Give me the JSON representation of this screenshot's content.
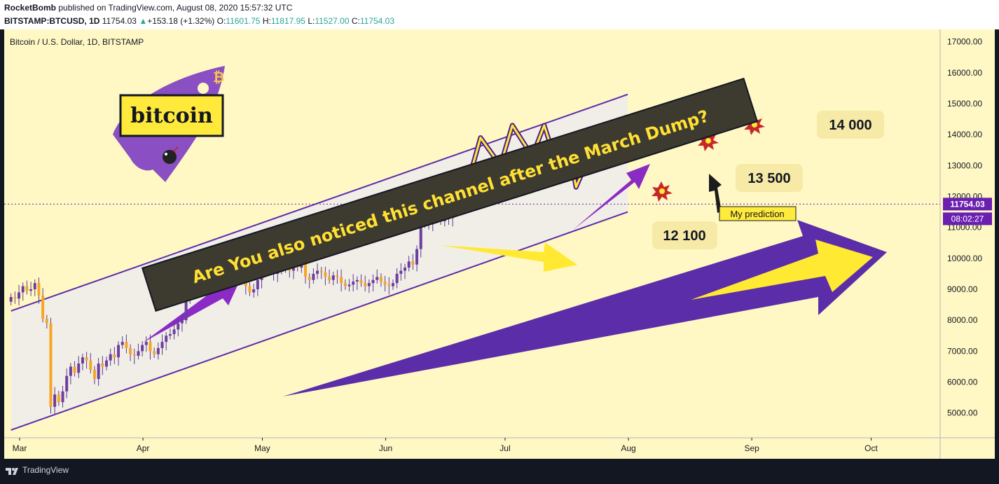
{
  "header": {
    "author": "RocketBomb",
    "published": "published on TradingView.com, August 08, 2020 15:57:32 UTC",
    "symbol": "BITSTAMP:BTCUSD, 1D",
    "last": "11754.03",
    "change": "+153.18 (+1.32%)",
    "o_label": "O:",
    "o": "11601.75",
    "h_label": "H:",
    "h": "11817.95",
    "l_label": "L:",
    "l": "11527.00",
    "c_label": "C:",
    "c": "11754.03"
  },
  "footer": {
    "brand": "TradingView"
  },
  "colors": {
    "bg": "#fff8c4",
    "purple": "#6a1fb0",
    "yellow": "#ffeb3b",
    "up": "#6b3fa0",
    "down": "#f5a623"
  },
  "annotations": {
    "banner": "Are You also noticed this channel after the March Dump?",
    "logo_text": "bitcoin",
    "label_12100": "12 100",
    "label_13500": "13 500",
    "label_14000": "14 000",
    "prediction": "My prediction"
  },
  "chart_data": {
    "type": "candlestick",
    "title": "Bitcoin / U.S. Dollar, 1D, BITSTAMP",
    "x_ticks": [
      "Mar",
      "Apr",
      "May",
      "Jun",
      "Jul",
      "Aug",
      "Sep",
      "Oct"
    ],
    "y_ticks": [
      "5000.00",
      "6000.00",
      "7000.00",
      "8000.00",
      "9000.00",
      "10000.00",
      "11000.00",
      "12000.00",
      "13000.00",
      "14000.00",
      "15000.00",
      "16000.00",
      "17000.00"
    ],
    "ylim": [
      4200,
      17400
    ],
    "price_label": "11754.03",
    "countdown_label": "08:02:27",
    "candles_close": [
      8750,
      8700,
      8900,
      9100,
      8950,
      9000,
      9200,
      8800,
      8050,
      7900,
      5200,
      5600,
      5350,
      5700,
      6200,
      6500,
      6300,
      6600,
      6800,
      6700,
      6400,
      6100,
      6600,
      6500,
      6700,
      6900,
      6800,
      7200,
      7300,
      7100,
      6900,
      6850,
      7000,
      7200,
      7300,
      7000,
      6900,
      7100,
      7300,
      7500,
      7550,
      7700,
      7900,
      8000,
      8700,
      9100,
      9400,
      9000,
      8900,
      9700,
      9900,
      10100,
      9600,
      9300,
      9200,
      9500,
      9700,
      9650,
      9800,
      9100,
      8900,
      9000,
      9300,
      9600,
      9700,
      10200,
      9500,
      9600,
      9700,
      9750,
      9600,
      9800,
      9700,
      9900,
      9400,
      9300,
      9500,
      9600,
      9550,
      9400,
      9300,
      9450,
      9400,
      9200,
      9100,
      9150,
      9250,
      9300,
      9200,
      9100,
      9200,
      9300,
      9400,
      9250,
      9150,
      9100,
      9200,
      9500,
      9600,
      9700,
      9900,
      9800,
      10300,
      11100,
      11300,
      11100,
      11400,
      11600,
      11200,
      11400,
      11300,
      11754
    ],
    "channel_upper": [
      [
        1,
        8300
      ],
      [
        156,
        15300
      ]
    ],
    "channel_lower": [
      [
        1,
        4450
      ],
      [
        156,
        11500
      ]
    ],
    "prediction_path": [
      [
        108,
        11700
      ],
      [
        111,
        12300
      ],
      [
        114,
        11600
      ],
      [
        119,
        13900
      ],
      [
        124,
        13000
      ],
      [
        127,
        14300
      ],
      [
        132,
        13300
      ],
      [
        135,
        14300
      ],
      [
        138,
        13100
      ],
      [
        141,
        13700
      ],
      [
        143,
        12300
      ],
      [
        146,
        13200
      ]
    ]
  }
}
